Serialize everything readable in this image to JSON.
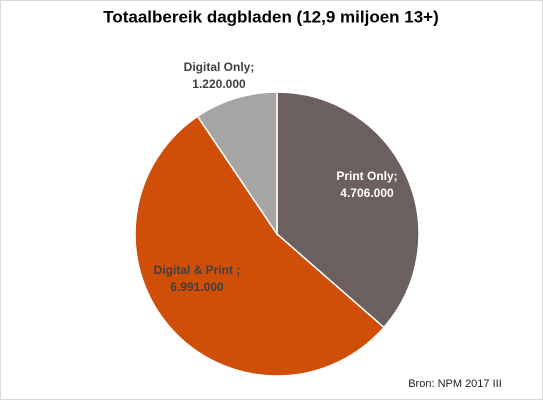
{
  "chart_data": {
    "type": "pie",
    "title": "Totaalbereik dagbladen (12,9 miljoen 13+)",
    "categories": [
      "Print Only;",
      "Digital & Print ;",
      "Digital Only;"
    ],
    "values": [
      4706000,
      6991000,
      1220000
    ],
    "value_labels": [
      "4.706.000",
      "6.991.000",
      "1.220.000"
    ],
    "colors": [
      "#6b605d",
      "#cf4e08",
      "#a5a5a5"
    ],
    "source": "Bron: NPM 2017 III"
  }
}
